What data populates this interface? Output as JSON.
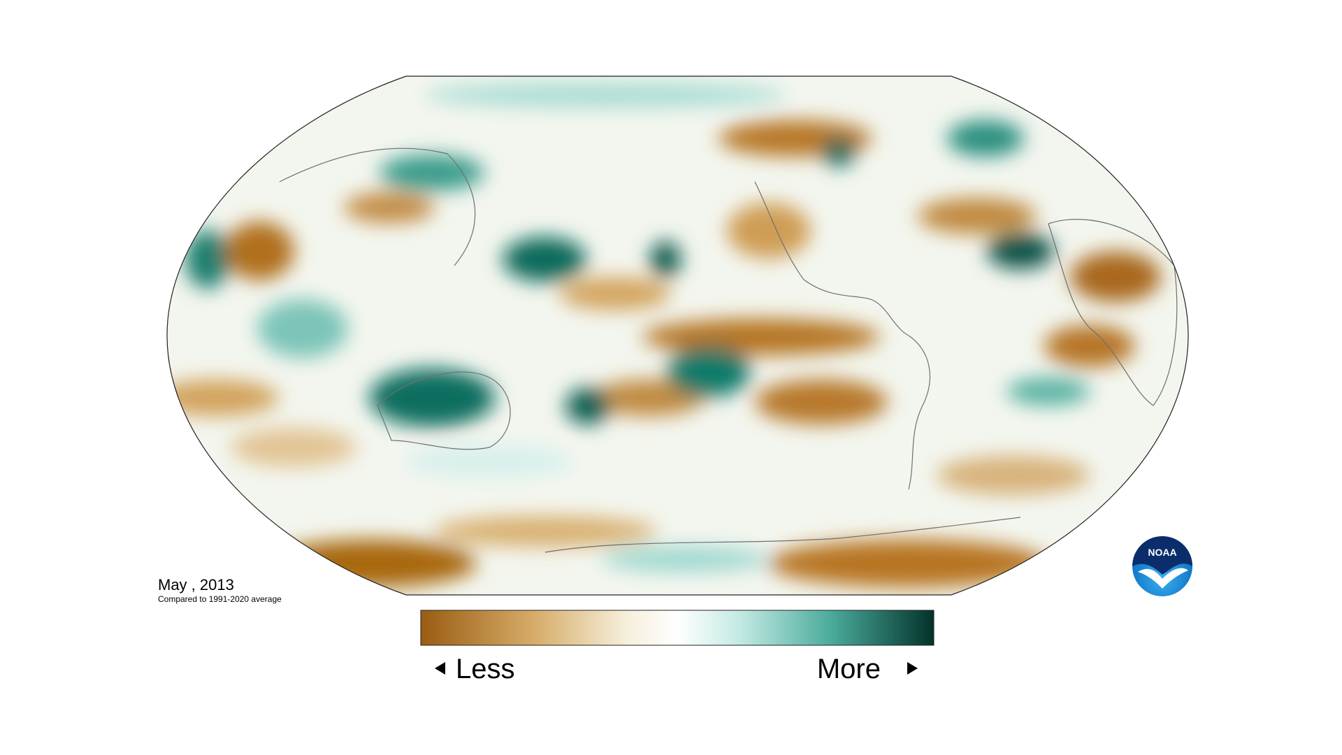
{
  "map": {
    "date": "May , 2013",
    "baseline": "Compared to 1991-2020 average"
  },
  "legend": {
    "low_label": "Less",
    "high_label": "More"
  },
  "logo": {
    "text": "NOAA"
  }
}
